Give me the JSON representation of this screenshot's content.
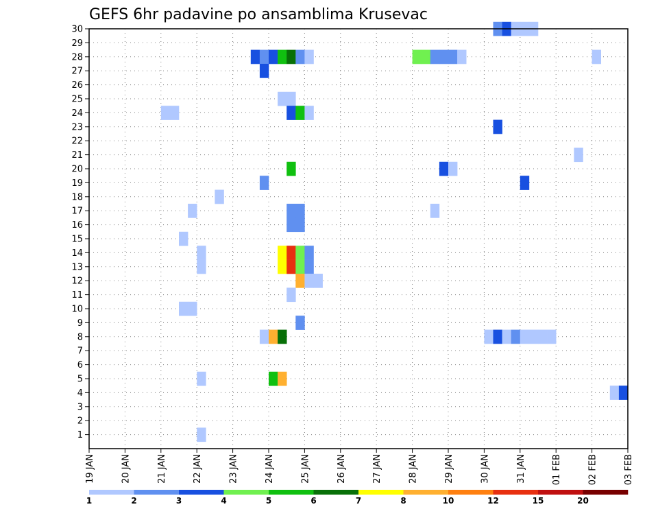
{
  "chart_data": {
    "type": "heatmap",
    "title": "GEFS 6hr padavine po ansamblima Krusevac",
    "xlabel": "",
    "ylabel": "",
    "x_ticks": [
      "19 JAN",
      "20 JAN",
      "21 JAN",
      "22 JAN",
      "23 JAN",
      "24 JAN",
      "25 JAN",
      "26 JAN",
      "27 JAN",
      "28 JAN",
      "29 JAN",
      "30 JAN",
      "31 JAN",
      "01 FEB",
      "02 FEB",
      "03 FEB"
    ],
    "x_range_days": [
      0,
      15
    ],
    "y_ticks": [
      1,
      2,
      3,
      4,
      5,
      6,
      7,
      8,
      9,
      10,
      11,
      12,
      13,
      14,
      15,
      16,
      17,
      18,
      19,
      20,
      21,
      22,
      23,
      24,
      25,
      26,
      27,
      28,
      29,
      30
    ],
    "y_range": [
      0,
      30
    ],
    "grid": true,
    "step_hours": 6,
    "colorbar": {
      "labels": [
        "1",
        "2",
        "3",
        "4",
        "5",
        "6",
        "7",
        "8",
        "10",
        "12",
        "15",
        "20"
      ],
      "colors": [
        "#b0c8ff",
        "#6090f0",
        "#1850e0",
        "#70f050",
        "#10c010",
        "#087008",
        "#ffff00",
        "#ffb030",
        "#ff8010",
        "#e83010",
        "#c01010",
        "#780000"
      ]
    },
    "cells": [
      {
        "member": 30,
        "t": "30 JAN 06",
        "v": 2
      },
      {
        "member": 30,
        "t": "30 JAN 12",
        "v": 3
      },
      {
        "member": 30,
        "t": "30 JAN 18",
        "v": 1
      },
      {
        "member": 30,
        "t": "31 JAN 00",
        "v": 1
      },
      {
        "member": 30,
        "t": "31 JAN 06",
        "v": 1
      },
      {
        "member": 28,
        "t": "23 JAN 12",
        "v": 3
      },
      {
        "member": 28,
        "t": "23 JAN 18",
        "v": 2
      },
      {
        "member": 28,
        "t": "24 JAN 00",
        "v": 3
      },
      {
        "member": 28,
        "t": "24 JAN 06",
        "v": 5
      },
      {
        "member": 28,
        "t": "24 JAN 12",
        "v": 6
      },
      {
        "member": 28,
        "t": "24 JAN 18",
        "v": 2
      },
      {
        "member": 28,
        "t": "25 JAN 00",
        "v": 1
      },
      {
        "member": 28,
        "t": "28 JAN 00",
        "v": 4
      },
      {
        "member": 28,
        "t": "28 JAN 06",
        "v": 4
      },
      {
        "member": 28,
        "t": "28 JAN 12",
        "v": 2
      },
      {
        "member": 28,
        "t": "28 JAN 18",
        "v": 2
      },
      {
        "member": 28,
        "t": "29 JAN 00",
        "v": 2
      },
      {
        "member": 28,
        "t": "29 JAN 06",
        "v": 1
      },
      {
        "member": 28,
        "t": "02 FEB 00",
        "v": 1
      },
      {
        "member": 27,
        "t": "23 JAN 18",
        "v": 3
      },
      {
        "member": 25,
        "t": "24 JAN 06",
        "v": 1
      },
      {
        "member": 25,
        "t": "24 JAN 12",
        "v": 1
      },
      {
        "member": 24,
        "t": "21 JAN 00",
        "v": 1
      },
      {
        "member": 24,
        "t": "21 JAN 06",
        "v": 1
      },
      {
        "member": 24,
        "t": "24 JAN 12",
        "v": 3
      },
      {
        "member": 24,
        "t": "24 JAN 18",
        "v": 5
      },
      {
        "member": 24,
        "t": "25 JAN 00",
        "v": 1
      },
      {
        "member": 23,
        "t": "30 JAN 06",
        "v": 3
      },
      {
        "member": 21,
        "t": "01 FEB 12",
        "v": 1
      },
      {
        "member": 20,
        "t": "24 JAN 12",
        "v": 5
      },
      {
        "member": 20,
        "t": "28 JAN 18",
        "v": 3
      },
      {
        "member": 20,
        "t": "29 JAN 00",
        "v": 1
      },
      {
        "member": 19,
        "t": "23 JAN 18",
        "v": 2
      },
      {
        "member": 19,
        "t": "31 JAN 00",
        "v": 3
      },
      {
        "member": 18,
        "t": "22 JAN 12",
        "v": 1
      },
      {
        "member": 17,
        "t": "21 JAN 18",
        "v": 1
      },
      {
        "member": 17,
        "t": "24 JAN 12",
        "v": 2
      },
      {
        "member": 17,
        "t": "24 JAN 18",
        "v": 2
      },
      {
        "member": 17,
        "t": "28 JAN 12",
        "v": 1
      },
      {
        "member": 16,
        "t": "24 JAN 12",
        "v": 2
      },
      {
        "member": 16,
        "t": "24 JAN 18",
        "v": 2
      },
      {
        "member": 15,
        "t": "21 JAN 12",
        "v": 1
      },
      {
        "member": 14,
        "t": "22 JAN 00",
        "v": 1
      },
      {
        "member": 14,
        "t": "24 JAN 06",
        "v": 7
      },
      {
        "member": 14,
        "t": "24 JAN 12",
        "v": 12
      },
      {
        "member": 14,
        "t": "24 JAN 18",
        "v": 4
      },
      {
        "member": 14,
        "t": "25 JAN 00",
        "v": 2
      },
      {
        "member": 13,
        "t": "22 JAN 00",
        "v": 1
      },
      {
        "member": 13,
        "t": "24 JAN 06",
        "v": 7
      },
      {
        "member": 13,
        "t": "24 JAN 12",
        "v": 12
      },
      {
        "member": 13,
        "t": "24 JAN 18",
        "v": 4
      },
      {
        "member": 13,
        "t": "25 JAN 00",
        "v": 2
      },
      {
        "member": 12,
        "t": "24 JAN 18",
        "v": 8
      },
      {
        "member": 12,
        "t": "25 JAN 00",
        "v": 1
      },
      {
        "member": 12,
        "t": "25 JAN 06",
        "v": 1
      },
      {
        "member": 11,
        "t": "24 JAN 12",
        "v": 1
      },
      {
        "member": 10,
        "t": "21 JAN 12",
        "v": 1
      },
      {
        "member": 10,
        "t": "21 JAN 18",
        "v": 1
      },
      {
        "member": 9,
        "t": "24 JAN 18",
        "v": 2
      },
      {
        "member": 8,
        "t": "23 JAN 18",
        "v": 1
      },
      {
        "member": 8,
        "t": "24 JAN 00",
        "v": 8
      },
      {
        "member": 8,
        "t": "24 JAN 06",
        "v": 6
      },
      {
        "member": 8,
        "t": "30 JAN 00",
        "v": 1
      },
      {
        "member": 8,
        "t": "30 JAN 06",
        "v": 3
      },
      {
        "member": 8,
        "t": "30 JAN 12",
        "v": 1
      },
      {
        "member": 8,
        "t": "30 JAN 18",
        "v": 2
      },
      {
        "member": 8,
        "t": "31 JAN 00",
        "v": 1
      },
      {
        "member": 8,
        "t": "31 JAN 06",
        "v": 1
      },
      {
        "member": 8,
        "t": "31 JAN 12",
        "v": 1
      },
      {
        "member": 8,
        "t": "31 JAN 18",
        "v": 1
      },
      {
        "member": 5,
        "t": "22 JAN 00",
        "v": 1
      },
      {
        "member": 5,
        "t": "24 JAN 00",
        "v": 5
      },
      {
        "member": 5,
        "t": "24 JAN 06",
        "v": 8
      },
      {
        "member": 4,
        "t": "02 FEB 12",
        "v": 1
      },
      {
        "member": 4,
        "t": "02 FEB 18",
        "v": 3
      },
      {
        "member": 1,
        "t": "22 JAN 00",
        "v": 1
      }
    ]
  }
}
